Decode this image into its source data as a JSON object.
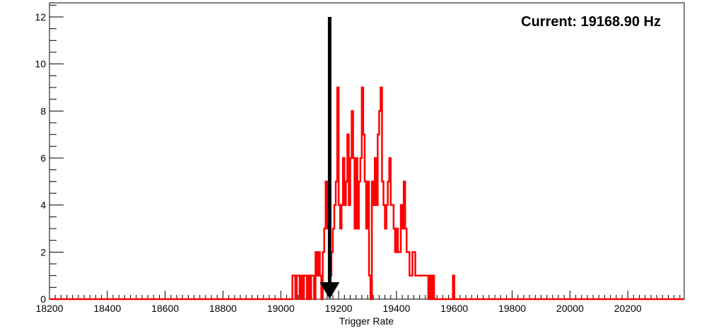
{
  "chart_data": {
    "type": "histogram",
    "title": "",
    "annotation": "Current: 19168.90 Hz",
    "xlabel": "Trigger Rate",
    "ylabel": "",
    "xlim": [
      18200,
      20395
    ],
    "ylim": [
      0,
      12.6
    ],
    "x_ticks": [
      18200,
      18400,
      18600,
      18800,
      19000,
      19200,
      19400,
      19600,
      19800,
      20000,
      20200
    ],
    "y_ticks": [
      0,
      2,
      4,
      6,
      8,
      10,
      12
    ],
    "grid": false,
    "legend": "none",
    "color": "#ff0000",
    "marker": {
      "x": 19168.9,
      "y_top": 12,
      "y_bottom": 0,
      "color": "#000000"
    },
    "bin_width": 5,
    "bins": [
      [
        19040,
        1
      ],
      [
        19045,
        1
      ],
      [
        19050,
        0
      ],
      [
        19055,
        1
      ],
      [
        19060,
        1
      ],
      [
        19065,
        0
      ],
      [
        19070,
        1
      ],
      [
        19075,
        0
      ],
      [
        19080,
        1
      ],
      [
        19085,
        1
      ],
      [
        19090,
        0
      ],
      [
        19095,
        1
      ],
      [
        19100,
        0
      ],
      [
        19105,
        1
      ],
      [
        19110,
        1
      ],
      [
        19115,
        0
      ],
      [
        19120,
        2
      ],
      [
        19125,
        1
      ],
      [
        19130,
        2
      ],
      [
        19135,
        1
      ],
      [
        19140,
        0
      ],
      [
        19145,
        2
      ],
      [
        19150,
        3
      ],
      [
        19155,
        5
      ],
      [
        19160,
        3
      ],
      [
        19165,
        5
      ],
      [
        19170,
        1
      ],
      [
        19175,
        2
      ],
      [
        19180,
        3
      ],
      [
        19185,
        4
      ],
      [
        19190,
        5
      ],
      [
        19195,
        9
      ],
      [
        19200,
        4
      ],
      [
        19205,
        3
      ],
      [
        19210,
        4
      ],
      [
        19215,
        6
      ],
      [
        19220,
        4
      ],
      [
        19225,
        5
      ],
      [
        19230,
        7
      ],
      [
        19235,
        4
      ],
      [
        19240,
        6
      ],
      [
        19245,
        8
      ],
      [
        19250,
        6
      ],
      [
        19255,
        3
      ],
      [
        19260,
        6
      ],
      [
        19265,
        3
      ],
      [
        19270,
        5
      ],
      [
        19275,
        6
      ],
      [
        19280,
        9
      ],
      [
        19285,
        7
      ],
      [
        19290,
        5
      ],
      [
        19295,
        3
      ],
      [
        19300,
        5
      ],
      [
        19305,
        1
      ],
      [
        19310,
        0
      ],
      [
        19315,
        5
      ],
      [
        19320,
        4
      ],
      [
        19325,
        6
      ],
      [
        19330,
        4
      ],
      [
        19335,
        7
      ],
      [
        19340,
        8
      ],
      [
        19345,
        9
      ],
      [
        19350,
        5
      ],
      [
        19355,
        4
      ],
      [
        19360,
        3
      ],
      [
        19365,
        4
      ],
      [
        19370,
        5
      ],
      [
        19375,
        6
      ],
      [
        19380,
        4
      ],
      [
        19385,
        4
      ],
      [
        19390,
        3
      ],
      [
        19395,
        2
      ],
      [
        19400,
        3
      ],
      [
        19405,
        2
      ],
      [
        19410,
        2
      ],
      [
        19415,
        4
      ],
      [
        19420,
        3
      ],
      [
        19425,
        5
      ],
      [
        19430,
        3
      ],
      [
        19435,
        2
      ],
      [
        19440,
        2
      ],
      [
        19445,
        1
      ],
      [
        19450,
        1
      ],
      [
        19455,
        2
      ],
      [
        19460,
        2
      ],
      [
        19465,
        1
      ],
      [
        19470,
        1
      ],
      [
        19475,
        1
      ],
      [
        19480,
        1
      ],
      [
        19485,
        1
      ],
      [
        19490,
        1
      ],
      [
        19495,
        1
      ],
      [
        19500,
        1
      ],
      [
        19505,
        1
      ],
      [
        19510,
        0
      ],
      [
        19515,
        1
      ],
      [
        19520,
        0
      ],
      [
        19525,
        1
      ],
      [
        19530,
        0
      ],
      [
        19535,
        0
      ],
      [
        19540,
        0
      ],
      [
        19545,
        0
      ],
      [
        19550,
        0
      ],
      [
        19555,
        0
      ],
      [
        19560,
        0
      ],
      [
        19565,
        0
      ],
      [
        19570,
        0
      ],
      [
        19575,
        0
      ],
      [
        19580,
        0
      ],
      [
        19585,
        0
      ],
      [
        19590,
        0
      ],
      [
        19595,
        1
      ]
    ]
  }
}
